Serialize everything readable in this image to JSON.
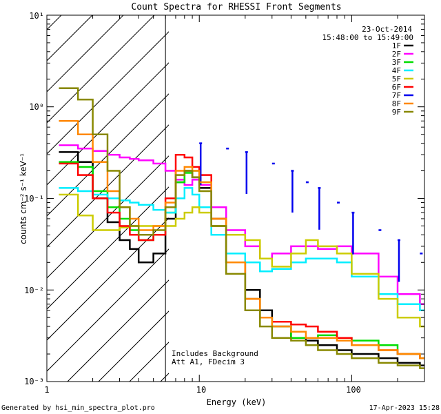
{
  "chart_data": {
    "type": "line",
    "title": "Count Spectra for RHESSI Front Segments",
    "xlabel": "Energy (keV)",
    "ylabel": "counts cm⁻² s⁻¹ keV⁻¹",
    "x_scale": "log",
    "y_scale": "log",
    "xlim": [
      1,
      300
    ],
    "ylim": [
      0.001,
      10
    ],
    "x_ticks": [
      "1",
      "10",
      "100"
    ],
    "y_ticks": [
      "10⁻³",
      "10⁻²",
      "10⁻¹",
      "10⁰",
      "10¹"
    ],
    "excluded_region_upper_keV": 6,
    "date": "23-Oct-2014",
    "time_range": "15:48:00 to 15:49:00",
    "annotations": [
      "Includes Background",
      "Att A1, FDecim 3"
    ],
    "legend_position": "top-right",
    "series": [
      {
        "name": "1F",
        "color": "#000000",
        "x": [
          1.2,
          1.6,
          2.0,
          2.5,
          3.0,
          3.5,
          4.0,
          5.0,
          6.0,
          7.0,
          8.0,
          9.0,
          10.0,
          12.0,
          15.0,
          20.0,
          25.0,
          30.0,
          40.0,
          50.0,
          60.0,
          80.0,
          100.0,
          150.0,
          200.0,
          280.0
        ],
        "y": [
          0.32,
          0.25,
          0.1,
          0.055,
          0.035,
          0.028,
          0.02,
          0.025,
          0.06,
          0.15,
          0.2,
          0.17,
          0.13,
          0.05,
          0.02,
          0.01,
          0.006,
          0.004,
          0.003,
          0.0028,
          0.0025,
          0.0022,
          0.002,
          0.0018,
          0.0016,
          0.0015
        ]
      },
      {
        "name": "2F",
        "color": "#ff00ff",
        "x": [
          1.2,
          1.6,
          2.0,
          2.5,
          3.0,
          3.5,
          4.0,
          5.0,
          6.0,
          7.0,
          8.0,
          9.0,
          10.0,
          12.0,
          15.0,
          20.0,
          25.0,
          30.0,
          40.0,
          50.0,
          60.0,
          80.0,
          100.0,
          150.0,
          200.0,
          280.0
        ],
        "y": [
          0.38,
          0.35,
          0.33,
          0.3,
          0.28,
          0.27,
          0.26,
          0.24,
          0.2,
          0.16,
          0.14,
          0.16,
          0.14,
          0.08,
          0.045,
          0.03,
          0.022,
          0.025,
          0.03,
          0.03,
          0.028,
          0.03,
          0.025,
          0.014,
          0.009,
          0.007
        ]
      },
      {
        "name": "3F",
        "color": "#00dd00",
        "x": [
          1.2,
          1.6,
          2.0,
          2.5,
          3.0,
          3.5,
          4.0,
          5.0,
          6.0,
          7.0,
          8.0,
          9.0,
          10.0,
          12.0,
          15.0,
          20.0,
          25.0,
          30.0,
          40.0,
          50.0,
          60.0,
          80.0,
          100.0,
          150.0,
          200.0,
          280.0
        ],
        "y": [
          0.25,
          0.22,
          0.12,
          0.08,
          0.06,
          0.045,
          0.035,
          0.04,
          0.07,
          0.15,
          0.19,
          0.2,
          0.15,
          0.06,
          0.02,
          0.008,
          0.005,
          0.004,
          0.003,
          0.003,
          0.0032,
          0.003,
          0.0028,
          0.0025,
          0.002,
          0.0018
        ]
      },
      {
        "name": "4F",
        "color": "#00eeff",
        "x": [
          1.2,
          1.6,
          2.0,
          2.5,
          3.0,
          3.5,
          4.0,
          5.0,
          6.0,
          7.0,
          8.0,
          9.0,
          10.0,
          12.0,
          15.0,
          20.0,
          25.0,
          30.0,
          40.0,
          50.0,
          60.0,
          80.0,
          100.0,
          150.0,
          200.0,
          280.0
        ],
        "y": [
          0.13,
          0.12,
          0.11,
          0.1,
          0.095,
          0.09,
          0.085,
          0.075,
          0.07,
          0.1,
          0.13,
          0.11,
          0.08,
          0.04,
          0.025,
          0.02,
          0.016,
          0.017,
          0.02,
          0.022,
          0.022,
          0.02,
          0.014,
          0.009,
          0.007,
          0.006
        ]
      },
      {
        "name": "5F",
        "color": "#cccc00",
        "x": [
          1.2,
          1.6,
          2.0,
          2.5,
          3.0,
          3.5,
          4.0,
          5.0,
          6.0,
          7.0,
          8.0,
          9.0,
          10.0,
          12.0,
          15.0,
          20.0,
          25.0,
          30.0,
          40.0,
          50.0,
          60.0,
          80.0,
          100.0,
          150.0,
          200.0,
          280.0
        ],
        "y": [
          0.11,
          0.065,
          0.045,
          0.045,
          0.048,
          0.05,
          0.05,
          0.05,
          0.05,
          0.06,
          0.07,
          0.08,
          0.07,
          0.05,
          0.04,
          0.035,
          0.022,
          0.018,
          0.025,
          0.035,
          0.03,
          0.025,
          0.015,
          0.008,
          0.005,
          0.004
        ]
      },
      {
        "name": "6F",
        "color": "#ff0000",
        "x": [
          1.2,
          1.6,
          2.0,
          2.5,
          3.0,
          3.5,
          4.0,
          5.0,
          6.0,
          7.0,
          8.0,
          9.0,
          10.0,
          12.0,
          15.0,
          20.0,
          25.0,
          30.0,
          40.0,
          50.0,
          60.0,
          80.0,
          100.0,
          150.0,
          200.0,
          280.0
        ],
        "y": [
          0.24,
          0.18,
          0.1,
          0.07,
          0.05,
          0.04,
          0.035,
          0.04,
          0.1,
          0.3,
          0.28,
          0.22,
          0.18,
          0.06,
          0.02,
          0.008,
          0.005,
          0.0045,
          0.0042,
          0.004,
          0.0035,
          0.003,
          0.0025,
          0.0022,
          0.002,
          0.0018
        ]
      },
      {
        "name": "7F",
        "color": "#0000ee",
        "x": [
          10.0,
          15.0,
          20.0,
          30.0,
          40.0,
          50.0,
          60.0,
          80.0,
          100.0,
          150.0,
          200.0,
          280.0
        ],
        "y": [
          0.4,
          0.35,
          0.32,
          0.24,
          0.2,
          0.15,
          0.13,
          0.09,
          0.07,
          0.045,
          0.035,
          0.025
        ]
      },
      {
        "name": "8F",
        "color": "#ff8800",
        "x": [
          1.2,
          1.6,
          2.0,
          2.5,
          3.0,
          3.5,
          4.0,
          5.0,
          6.0,
          7.0,
          8.0,
          9.0,
          10.0,
          12.0,
          15.0,
          20.0,
          25.0,
          30.0,
          40.0,
          50.0,
          60.0,
          80.0,
          100.0,
          150.0,
          200.0,
          280.0
        ],
        "y": [
          0.7,
          0.5,
          0.25,
          0.12,
          0.08,
          0.06,
          0.045,
          0.05,
          0.09,
          0.2,
          0.22,
          0.2,
          0.15,
          0.06,
          0.02,
          0.008,
          0.005,
          0.004,
          0.0035,
          0.003,
          0.003,
          0.0028,
          0.0025,
          0.0022,
          0.002,
          0.0018
        ]
      },
      {
        "name": "9F",
        "color": "#888800",
        "x": [
          1.2,
          1.6,
          2.0,
          2.5,
          3.0,
          3.5,
          4.0,
          5.0,
          6.0,
          7.0,
          8.0,
          9.0,
          10.0,
          12.0,
          15.0,
          20.0,
          25.0,
          30.0,
          40.0,
          50.0,
          60.0,
          80.0,
          100.0,
          150.0,
          200.0,
          280.0
        ],
        "y": [
          1.6,
          1.2,
          0.5,
          0.2,
          0.08,
          0.05,
          0.04,
          0.045,
          0.08,
          0.18,
          0.2,
          0.17,
          0.12,
          0.05,
          0.015,
          0.006,
          0.004,
          0.003,
          0.0028,
          0.0025,
          0.0022,
          0.002,
          0.0018,
          0.0016,
          0.0015,
          0.0014
        ]
      }
    ]
  },
  "footer": {
    "left": "Generated by hsi_min_spectra_plot.pro",
    "right": "17-Apr-2023 15:28"
  }
}
